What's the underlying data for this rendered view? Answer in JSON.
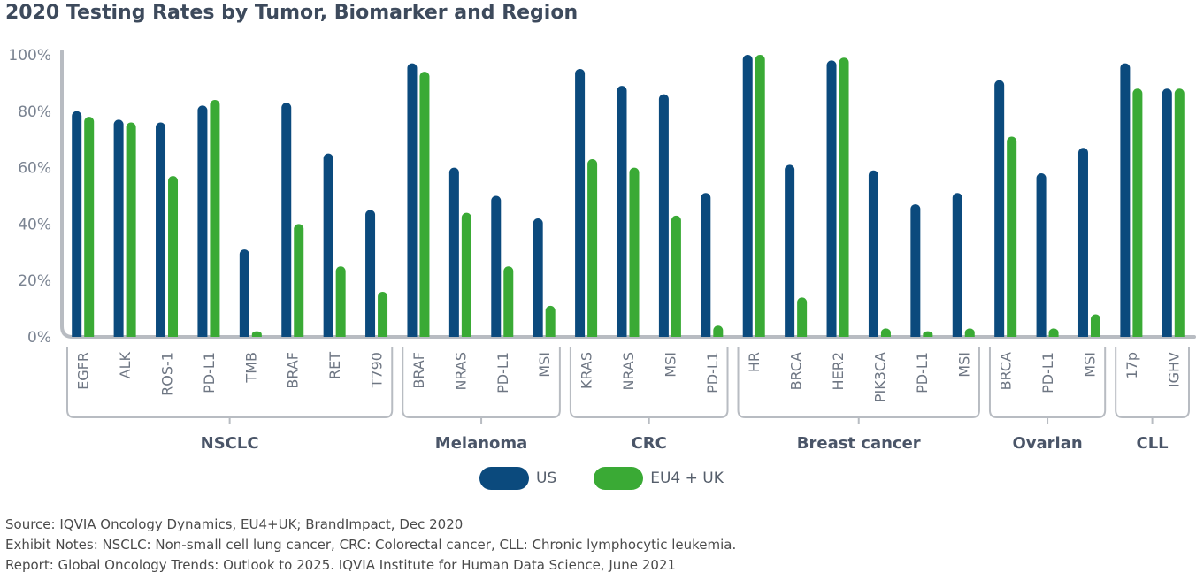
{
  "title": "2020 Testing Rates by Tumor, Biomarker and Region",
  "chart_data": {
    "type": "bar",
    "title": "2020 Testing Rates by Tumor, Biomarker and Region",
    "ylim": [
      0,
      100
    ],
    "yticks": [
      "0%",
      "20%",
      "40%",
      "60%",
      "80%",
      "100%"
    ],
    "grid": false,
    "legend_position": "bottom",
    "groups": [
      {
        "name": "NSCLC",
        "count": 8
      },
      {
        "name": "Melanoma",
        "count": 4
      },
      {
        "name": "CRC",
        "count": 4
      },
      {
        "name": "Breast cancer",
        "count": 6
      },
      {
        "name": "Ovarian",
        "count": 3
      },
      {
        "name": "CLL",
        "count": 2
      }
    ],
    "categories": [
      "EGFR",
      "ALK",
      "ROS-1",
      "PD-L1",
      "TMB",
      "BRAF",
      "RET",
      "T790",
      "BRAF",
      "NRAS",
      "PD-L1",
      "MSI",
      "KRAS",
      "NRAS",
      "MSI",
      "PD-L1",
      "HR",
      "BRCA",
      "HER2",
      "PIK3CA",
      "PD-L1",
      "MSI",
      "BRCA",
      "PD-L1",
      "MSI",
      "17p",
      "IGHV"
    ],
    "series": [
      {
        "name": "US",
        "color": "#0b4a7d",
        "values": [
          80,
          77,
          76,
          82,
          31,
          83,
          65,
          45,
          97,
          60,
          50,
          42,
          95,
          89,
          86,
          51,
          100,
          61,
          98,
          59,
          47,
          51,
          91,
          58,
          67,
          97,
          88
        ]
      },
      {
        "name": "EU4 + UK",
        "color": "#3aaa35",
        "values": [
          78,
          76,
          57,
          84,
          2,
          40,
          25,
          16,
          94,
          44,
          25,
          11,
          63,
          60,
          43,
          4,
          100,
          14,
          99,
          3,
          2,
          3,
          71,
          3,
          8,
          88,
          88
        ]
      }
    ]
  },
  "notes": [
    "Source: IQVIA Oncology Dynamics, EU4+UK; BrandImpact, Dec 2020",
    "Exhibit Notes: NSCLC: Non-small cell lung cancer, CRC: Colorectal cancer, CLL: Chronic lymphocytic leukemia.",
    "Report: Global Oncology Trends: Outlook to 2025. IQVIA Institute for Human Data Science, June 2021"
  ]
}
